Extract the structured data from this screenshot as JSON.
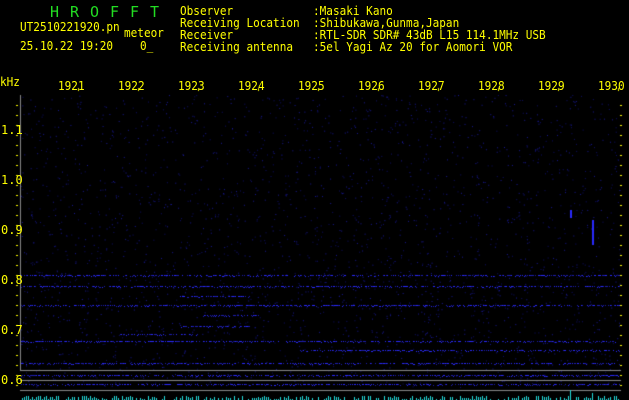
{
  "app_title": [
    "H",
    "R",
    "O",
    "F",
    "F",
    "T"
  ],
  "filename": "UT2510221920.pn",
  "meteor_label": "meteor",
  "datetime": "25.10.22 19:20",
  "meteor_count": "0_",
  "info": [
    {
      "label": "Observer",
      "value": ":Masaki Kano"
    },
    {
      "label": "Receiving Location",
      "value": ":Shibukawa,Gunma,Japan"
    },
    {
      "label": "Receiver",
      "value": ":RTL-SDR SDR# 43dB L15 114.1MHz USB"
    },
    {
      "label": "Receiving antenna",
      "value": ":5el Yagi Az 20 for Aomori VOR"
    }
  ],
  "freq_unit": "kHz",
  "time_ticks": [
    "1921",
    "1922",
    "1923",
    "1924",
    "1925",
    "1926",
    "1927",
    "1928",
    "1929",
    "1930"
  ],
  "freq_ticks": [
    "1.1",
    "1.0",
    "0.9",
    "0.8",
    "0.7",
    "0.6"
  ],
  "colors": {
    "text": "#ffff00",
    "title": "#22dd22",
    "signal": "#2a2aff",
    "power": "#22dddd",
    "divider": "#888888"
  }
}
